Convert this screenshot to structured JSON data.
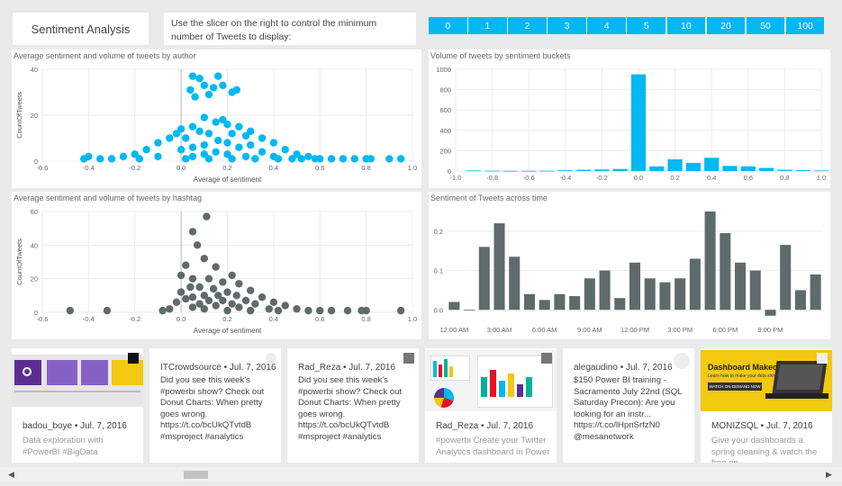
{
  "header": {
    "title": "Sentiment Analysis",
    "instruction": "Use the slicer on the right to control the minimum number of Tweets to display:",
    "slicer_options": [
      "0",
      "1",
      "2",
      "3",
      "4",
      "5",
      "10",
      "20",
      "50",
      "100"
    ]
  },
  "colors": {
    "accent": "#01b8f2",
    "hashtag_dots": "#5f6a6a",
    "bars_time": "#5f6a6a"
  },
  "chart_data": [
    {
      "type": "scatter",
      "title": "Average sentiment and volume of tweets by author",
      "xlabel": "Average of sentiment",
      "ylabel": "CountOfTweets",
      "xlim": [
        -0.6,
        1.0
      ],
      "ylim": [
        0,
        40
      ],
      "xticks": [
        "-0.6",
        "-0.4",
        "-0.2",
        "0.0",
        "0.2",
        "0.4",
        "0.6",
        "0.8",
        "1.0"
      ],
      "yticks": [
        "0",
        "20",
        "40"
      ],
      "points": [
        [
          0.05,
          37
        ],
        [
          0.08,
          36
        ],
        [
          0.16,
          37
        ],
        [
          0.1,
          33
        ],
        [
          0.14,
          32
        ],
        [
          0.18,
          33
        ],
        [
          0.04,
          31
        ],
        [
          0.22,
          30
        ],
        [
          0.24,
          31
        ],
        [
          0.12,
          29
        ],
        [
          0.06,
          28
        ],
        [
          0.1,
          19
        ],
        [
          0.18,
          18
        ],
        [
          0.2,
          16
        ],
        [
          0.15,
          17
        ],
        [
          0.05,
          15
        ],
        [
          0.25,
          15
        ],
        [
          0.3,
          13
        ],
        [
          0.0,
          14
        ],
        [
          -0.02,
          12
        ],
        [
          0.08,
          13
        ],
        [
          0.12,
          12
        ],
        [
          0.22,
          12
        ],
        [
          0.28,
          11
        ],
        [
          0.35,
          10
        ],
        [
          -0.05,
          10
        ],
        [
          0.02,
          10
        ],
        [
          0.16,
          9
        ],
        [
          0.2,
          8
        ],
        [
          0.4,
          8
        ],
        [
          -0.1,
          8
        ],
        [
          0.1,
          7
        ],
        [
          0.3,
          7
        ],
        [
          0.05,
          6
        ],
        [
          0.25,
          6
        ],
        [
          0.45,
          5
        ],
        [
          -0.15,
          5
        ],
        [
          0.0,
          5
        ],
        [
          0.15,
          4
        ],
        [
          0.35,
          4
        ],
        [
          -0.2,
          3
        ],
        [
          0.5,
          3
        ],
        [
          0.1,
          3
        ],
        [
          0.2,
          3
        ],
        [
          0.28,
          2
        ],
        [
          -0.25,
          2
        ],
        [
          0.55,
          2
        ],
        [
          0.05,
          2
        ],
        [
          0.4,
          2
        ],
        [
          -0.3,
          1
        ],
        [
          -0.35,
          1
        ],
        [
          -0.4,
          2
        ],
        [
          0.6,
          1
        ],
        [
          0.65,
          1
        ],
        [
          0.7,
          1
        ],
        [
          0.75,
          1
        ],
        [
          0.8,
          1
        ],
        [
          0.82,
          1
        ],
        [
          0.9,
          1
        ],
        [
          0.95,
          1
        ],
        [
          -0.42,
          1
        ],
        [
          0.48,
          1
        ],
        [
          -0.1,
          2
        ],
        [
          0.32,
          1
        ],
        [
          0.42,
          1
        ],
        [
          0.52,
          1
        ],
        [
          0.58,
          1
        ],
        [
          -0.18,
          1
        ],
        [
          0.12,
          1
        ],
        [
          0.02,
          1
        ],
        [
          0.22,
          1
        ]
      ]
    },
    {
      "type": "bar",
      "title": "Volume of tweets by sentiment buckets",
      "xlim": [
        -1.0,
        1.0
      ],
      "ylim": [
        0,
        1000
      ],
      "xticks": [
        "-1.0",
        "-0.8",
        "-0.6",
        "-0.4",
        "-0.2",
        "0.0",
        "0.2",
        "0.4",
        "0.6",
        "0.8",
        "1.0"
      ],
      "yticks": [
        "0",
        "200",
        "400",
        "600",
        "800",
        "1000"
      ],
      "x": [
        -0.9,
        -0.8,
        -0.7,
        -0.6,
        -0.5,
        -0.4,
        -0.3,
        -0.2,
        -0.1,
        0.0,
        0.1,
        0.2,
        0.3,
        0.4,
        0.5,
        0.6,
        0.7,
        0.8,
        0.9,
        1.0
      ],
      "values": [
        5,
        3,
        2,
        2,
        3,
        8,
        12,
        15,
        20,
        950,
        45,
        115,
        80,
        130,
        50,
        45,
        30,
        12,
        8,
        5
      ]
    },
    {
      "type": "scatter",
      "title": "Average sentiment and volume of tweets by hashtag",
      "xlabel": "Average of sentiment",
      "ylabel": "CountOfTweets",
      "xlim": [
        -0.6,
        1.0
      ],
      "ylim": [
        0,
        60
      ],
      "xticks": [
        "-0.6",
        "-0.4",
        "-0.2",
        "0.0",
        "0.2",
        "0.4",
        "0.6",
        "0.8",
        "1.0"
      ],
      "yticks": [
        "0",
        "20",
        "40",
        "60"
      ],
      "points": [
        [
          0.11,
          57
        ],
        [
          0.05,
          48
        ],
        [
          0.07,
          40
        ],
        [
          0.1,
          32
        ],
        [
          0.02,
          28
        ],
        [
          0.15,
          27
        ],
        [
          0.0,
          22
        ],
        [
          0.05,
          20
        ],
        [
          0.22,
          22
        ],
        [
          0.12,
          20
        ],
        [
          0.18,
          18
        ],
        [
          0.25,
          17
        ],
        [
          0.04,
          15
        ],
        [
          0.08,
          15
        ],
        [
          0.14,
          14
        ],
        [
          0.3,
          13
        ],
        [
          0.2,
          12
        ],
        [
          0.0,
          12
        ],
        [
          0.1,
          10
        ],
        [
          0.16,
          10
        ],
        [
          0.24,
          10
        ],
        [
          0.35,
          9
        ],
        [
          0.05,
          9
        ],
        [
          0.02,
          8
        ],
        [
          0.12,
          7
        ],
        [
          0.18,
          7
        ],
        [
          0.28,
          7
        ],
        [
          0.4,
          6
        ],
        [
          -0.02,
          6
        ],
        [
          0.08,
          5
        ],
        [
          0.22,
          5
        ],
        [
          0.32,
          5
        ],
        [
          0.45,
          4
        ],
        [
          0.15,
          4
        ],
        [
          0.05,
          3
        ],
        [
          0.25,
          3
        ],
        [
          0.5,
          2
        ],
        [
          0.38,
          2
        ],
        [
          -0.05,
          2
        ],
        [
          0.1,
          2
        ],
        [
          0.55,
          1
        ],
        [
          0.6,
          1
        ],
        [
          0.65,
          1
        ],
        [
          0.72,
          1
        ],
        [
          0.78,
          1
        ],
        [
          0.8,
          1
        ],
        [
          0.95,
          1
        ],
        [
          -0.48,
          1
        ],
        [
          -0.32,
          1
        ],
        [
          -0.08,
          1
        ],
        [
          0.42,
          1
        ],
        [
          0.3,
          1
        ],
        [
          0.2,
          1
        ]
      ]
    },
    {
      "type": "bar",
      "title": "Sentiment of Tweets across time",
      "ylim": [
        -0.02,
        0.25
      ],
      "yticks": [
        "0.0",
        "0.1",
        "0.2"
      ],
      "xticks": [
        "12:00 AM",
        "3:00 AM",
        "6:00 AM",
        "9:00 AM",
        "12:00 PM",
        "3:00 PM",
        "6:00 PM",
        "9:00 PM"
      ],
      "values": [
        0.02,
        0.0,
        0.16,
        0.22,
        0.135,
        0.04,
        0.025,
        0.04,
        0.035,
        0.08,
        0.1,
        0.03,
        0.12,
        0.08,
        0.07,
        0.08,
        0.13,
        0.25,
        0.195,
        0.12,
        0.1,
        -0.015,
        0.165,
        0.05,
        0.09
      ]
    }
  ],
  "tweets": [
    {
      "author_line": "badou_boye • Jul. 7, 2016",
      "text": "Data exploration with #PowerBI #BigData",
      "has_image": true
    },
    {
      "author_line": "ITCrowdsource • Jul. 7, 2016",
      "text": "Did you see this week's #powerbi show? Check out Donut Charts: When pretty goes wrong. https://t.co/bcUkQTvtdB #msproject #analytics",
      "has_image": false
    },
    {
      "author_line": "Rad_Reza • Jul. 7, 2016",
      "text": "Did you see this week's #powerbi show? Check out Donut Charts: When pretty goes wrong. https://t.co/bcUkQTvtdB #msproject #analytics",
      "has_image": false
    },
    {
      "author_line": "Rad_Reza • Jul. 7, 2016",
      "text": "#powerbi Create your Twitter Analytics dashboard in Power",
      "has_image": true
    },
    {
      "author_line": "alegaudino • Jul. 7, 2016",
      "text": "$150 Power BI training - Sacramento July 22nd (SQL Saturday Precon): Are you looking for an instr... https://t.co/lHpnSrfzN0 @mesanetwork",
      "has_image": false
    },
    {
      "author_line": "MONIZSQL • Jul. 7, 2016",
      "text": "Give your dashboards a spring cleaning & watch the free on-",
      "has_image": true,
      "image_title": "Dashboard Makeover:",
      "image_sub": "Learn how to make your data shine",
      "image_button": "WATCH ON-DEMAND NOW"
    }
  ],
  "scrollbar": {
    "left_arrow": "◀",
    "right_arrow": "▶"
  }
}
